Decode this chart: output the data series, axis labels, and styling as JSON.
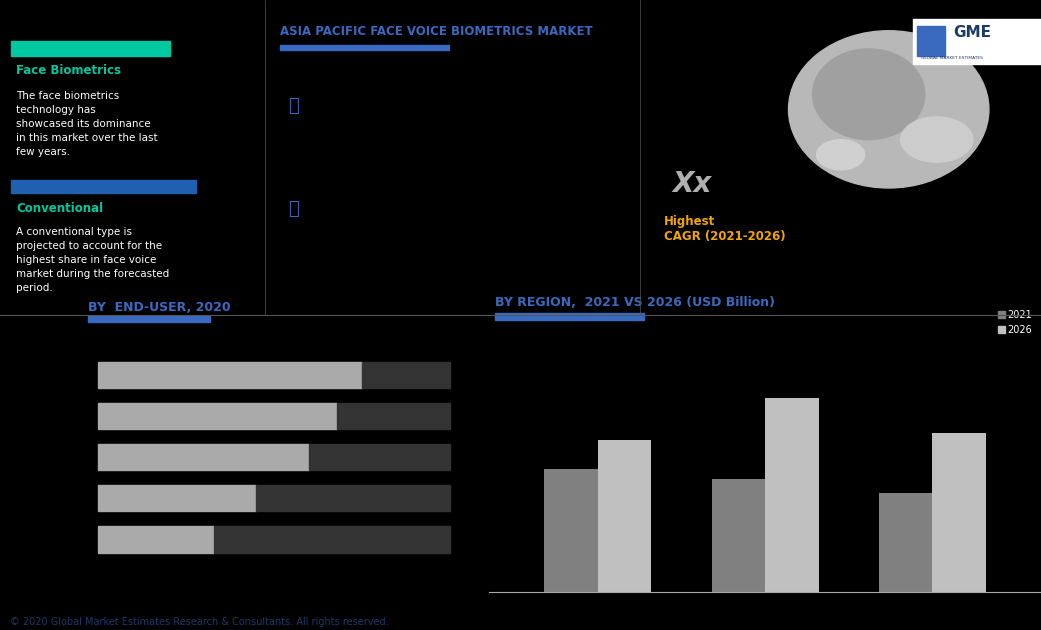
{
  "title": "ASIA PACIFIC FACE VOICE BIOMETRICS MARKET",
  "bg_color": "#000000",
  "face_bio_title": "Face Biometrics",
  "face_bio_bar_color": "#00c8a0",
  "face_bio_text": "The face biometrics\ntechnology has\nshowcased its dominance\nin this market over the last\nfew years.",
  "conventional_title": "Conventional",
  "conventional_bar_color": "#2060b0",
  "conventional_text": "A conventional type is\nprojected to account for the\nhighest share in face voice\nmarket during the forecasted\nperiod.",
  "cagr_value": "Xx",
  "cagr_desc": "Highest\nCAGR (2021-2026)",
  "cagr_value_color": "#b0b0b0",
  "cagr_desc_color": "#f0a500",
  "bar_chart_title": "BY  END-USER, 2020",
  "bar_gray_vals": [
    75,
    68,
    60,
    45,
    33
  ],
  "bar_dark_vals": [
    25,
    32,
    40,
    55,
    67
  ],
  "bar_gray_color": "#aaaaaa",
  "bar_dark_color": "#333333",
  "region_title": "BY REGION,  2021 VS 2026 (USD Billion)",
  "region_2021": [
    3.5,
    3.2,
    2.8
  ],
  "region_2026": [
    4.3,
    5.5,
    4.5
  ],
  "color_2021": "#808080",
  "color_2026": "#c0c0c0",
  "legend_2021": "2021",
  "legend_2026": "2026",
  "title_color": "#3a6abf",
  "underline_color": "#3a6abf",
  "icon_color": "#3a6abf",
  "footer": "© 2020 Global Market Estimates Research & Consultants. All rights reserved.",
  "footer_color": "#1a3a6b",
  "divider_color": "#555555",
  "panel_left_bg": "#111120"
}
